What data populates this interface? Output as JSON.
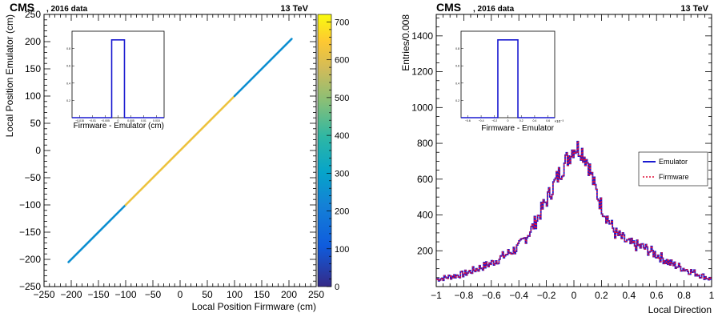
{
  "chart_data": [
    {
      "type": "heatmap",
      "header": {
        "experiment": "CMS",
        "dataset": ", 2016 data",
        "energy": "13 TeV"
      },
      "xlabel": "Local Position Firmware (cm)",
      "ylabel": "Local Position Emulator (cm)",
      "xlim": [
        -250,
        250
      ],
      "ylim": [
        -250,
        250
      ],
      "xticks": [
        "−250",
        "−200",
        "−150",
        "−100",
        "−50",
        "0",
        "50",
        "100",
        "150",
        "200",
        "250"
      ],
      "yticks": [
        "−250",
        "−200",
        "−150",
        "−100",
        "−50",
        "0",
        "50",
        "100",
        "150",
        "200",
        "250"
      ],
      "colorbar": {
        "range": [
          0,
          720
        ],
        "ticks": [
          "0",
          "100",
          "200",
          "300",
          "400",
          "500",
          "600",
          "700"
        ]
      },
      "diagonal": {
        "x_start": -205,
        "x_end": 205,
        "segments": [
          {
            "from": -205,
            "to": -100,
            "value": 250
          },
          {
            "from": -100,
            "to": 100,
            "value": 620
          },
          {
            "from": 100,
            "to": 205,
            "value": 250
          }
        ]
      },
      "inset": {
        "xlabel": "Firmware - Emulator (cm)",
        "xticks": [
          "−0.015",
          "−0.01",
          "−0.005",
          "0",
          "0.005",
          "0.01",
          "0.015"
        ],
        "yticks": [
          "0.2",
          "0.4",
          "0.6",
          "0.8"
        ],
        "bin": [
          -0.0025,
          0.0025
        ],
        "height": 0.9
      }
    },
    {
      "type": "line",
      "header": {
        "experiment": "CMS",
        "dataset": ", 2016 data",
        "energy": "13 TeV"
      },
      "xlabel": "Local Direction",
      "ylabel": "Entries/0.008",
      "xlim": [
        -1,
        1
      ],
      "ylim": [
        0,
        1520
      ],
      "xticks": [
        "−1",
        "−0.8",
        "−0.6",
        "−0.4",
        "−0.2",
        "0",
        "0.2",
        "0.4",
        "0.6",
        "0.8",
        "1"
      ],
      "yticks": [
        "200",
        "400",
        "600",
        "800",
        "1000",
        "1200",
        "1400"
      ],
      "legend": {
        "position": "right",
        "entries": [
          "Emulator",
          "Firmware"
        ]
      },
      "series_colors": {
        "Emulator": "#1a1ad0",
        "Firmware": "#e0103a"
      },
      "shape_points": [
        [
          -1.0,
          40
        ],
        [
          -0.8,
          70
        ],
        [
          -0.6,
          130
        ],
        [
          -0.5,
          175
        ],
        [
          -0.4,
          220
        ],
        [
          -0.3,
          330
        ],
        [
          -0.2,
          480
        ],
        [
          -0.1,
          640
        ],
        [
          0.0,
          780
        ],
        [
          0.05,
          770
        ],
        [
          0.1,
          700
        ],
        [
          0.15,
          560
        ],
        [
          0.2,
          450
        ],
        [
          0.3,
          300
        ],
        [
          0.4,
          240
        ],
        [
          0.5,
          220
        ],
        [
          0.6,
          180
        ],
        [
          0.7,
          130
        ],
        [
          0.8,
          100
        ],
        [
          0.9,
          70
        ],
        [
          1.0,
          40
        ]
      ],
      "inset": {
        "xlabel": "Firmware - Emulator",
        "xticks": [
          "−0.6",
          "−0.4",
          "−0.2",
          "0",
          "0.2",
          "0.4",
          "0.6"
        ],
        "yticks": [
          "0.2",
          "0.4",
          "0.6",
          "0.8"
        ],
        "bin": [
          -0.15,
          0.15
        ],
        "height": 0.9,
        "exponent": "×10⁻³"
      }
    }
  ]
}
